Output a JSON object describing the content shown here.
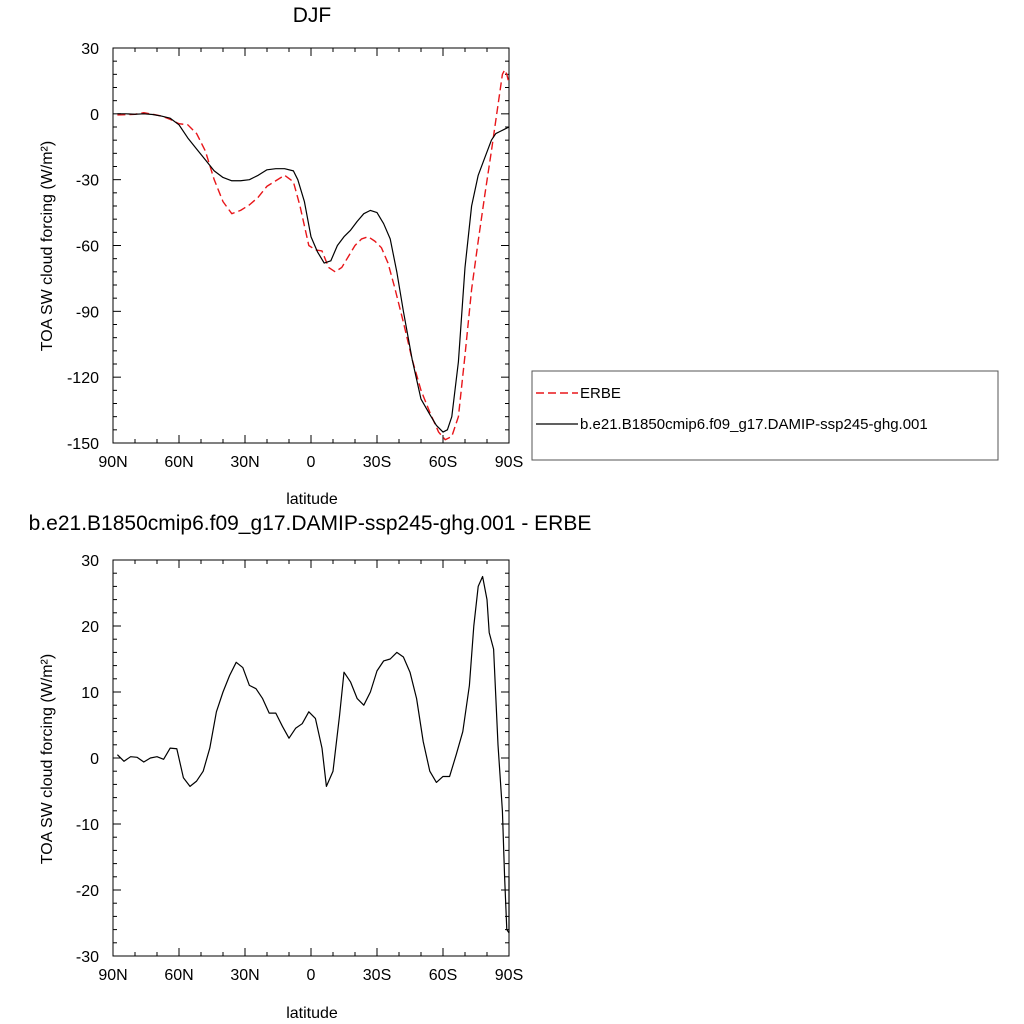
{
  "chart_data": [
    {
      "type": "line",
      "title": "DJF",
      "xlabel": "latitude",
      "ylabel": "TOA SW cloud forcing (W/m²)",
      "xlim": [
        90,
        -90
      ],
      "ylim": [
        -150,
        30
      ],
      "xticks": [
        90,
        60,
        30,
        0,
        -30,
        -60,
        -90
      ],
      "xtick_labels": [
        "90N",
        "60N",
        "30N",
        "0",
        "30S",
        "60S",
        "90S"
      ],
      "yticks": [
        30,
        0,
        -30,
        -60,
        -90,
        -120,
        -150
      ],
      "ytick_labels": [
        "30",
        "0",
        "-30",
        "-60",
        "-90",
        "-120",
        "-150"
      ],
      "legend_position": "right",
      "series": [
        {
          "name": "ERBE",
          "style": "dashed",
          "color": "#e8161a",
          "points": [
            [
              88,
              -0.5
            ],
            [
              84,
              -0.4
            ],
            [
              80,
              -0.2
            ],
            [
              76,
              0.5
            ],
            [
              72,
              -0.2
            ],
            [
              68,
              -1
            ],
            [
              64,
              -2.5
            ],
            [
              60,
              -4.5
            ],
            [
              56,
              -5
            ],
            [
              52,
              -9
            ],
            [
              48,
              -17
            ],
            [
              44,
              -30
            ],
            [
              40,
              -40
            ],
            [
              36,
              -45.5
            ],
            [
              32,
              -44
            ],
            [
              28,
              -41.5
            ],
            [
              24,
              -38
            ],
            [
              20,
              -33
            ],
            [
              16,
              -30.5
            ],
            [
              12,
              -28
            ],
            [
              8,
              -31
            ],
            [
              5,
              -42
            ],
            [
              1,
              -60
            ],
            [
              -2,
              -62
            ],
            [
              -5,
              -62.5
            ],
            [
              -8,
              -70
            ],
            [
              -11,
              -72
            ],
            [
              -14,
              -70
            ],
            [
              -17,
              -65
            ],
            [
              -20,
              -60
            ],
            [
              -23,
              -57
            ],
            [
              -26,
              -56
            ],
            [
              -29,
              -58
            ],
            [
              -32,
              -61
            ],
            [
              -35,
              -68
            ],
            [
              -38,
              -79
            ],
            [
              -42,
              -95
            ],
            [
              -46,
              -112
            ],
            [
              -50,
              -126
            ],
            [
              -54,
              -136
            ],
            [
              -58,
              -145
            ],
            [
              -61,
              -148.5
            ],
            [
              -64,
              -147
            ],
            [
              -67,
              -138
            ],
            [
              -70,
              -110
            ],
            [
              -73,
              -80
            ],
            [
              -76,
              -58
            ],
            [
              -79,
              -37
            ],
            [
              -82,
              -17
            ],
            [
              -85,
              4
            ],
            [
              -87,
              18
            ],
            [
              -88,
              20
            ],
            [
              -89,
              18
            ],
            [
              -90,
              14
            ]
          ]
        },
        {
          "name": "b.e21.B1850cmip6.f09_g17.DAMIP-ssp245-ghg.001",
          "style": "solid",
          "color": "#000000",
          "points": [
            [
              88,
              0
            ],
            [
              84,
              0
            ],
            [
              80,
              -0.2
            ],
            [
              76,
              0
            ],
            [
              72,
              -0.3
            ],
            [
              68,
              -1
            ],
            [
              64,
              -2
            ],
            [
              60,
              -5
            ],
            [
              56,
              -11
            ],
            [
              52,
              -16
            ],
            [
              48,
              -21
            ],
            [
              44,
              -26
            ],
            [
              40,
              -29
            ],
            [
              36,
              -30.5
            ],
            [
              32,
              -30.5
            ],
            [
              28,
              -30
            ],
            [
              24,
              -28
            ],
            [
              20,
              -25.5
            ],
            [
              16,
              -25
            ],
            [
              12,
              -25
            ],
            [
              8,
              -26
            ],
            [
              6,
              -30
            ],
            [
              3,
              -40
            ],
            [
              0,
              -56
            ],
            [
              -3,
              -63
            ],
            [
              -6,
              -68
            ],
            [
              -9,
              -67
            ],
            [
              -12,
              -60
            ],
            [
              -15,
              -56
            ],
            [
              -18,
              -53
            ],
            [
              -21,
              -49
            ],
            [
              -24,
              -45.5
            ],
            [
              -27,
              -44
            ],
            [
              -30,
              -45
            ],
            [
              -33,
              -50
            ],
            [
              -36,
              -57
            ],
            [
              -39,
              -72
            ],
            [
              -42,
              -90
            ],
            [
              -46,
              -112
            ],
            [
              -50,
              -130
            ],
            [
              -54,
              -137
            ],
            [
              -57,
              -142
            ],
            [
              -60,
              -145
            ],
            [
              -62,
              -144
            ],
            [
              -64,
              -138
            ],
            [
              -67,
              -113
            ],
            [
              -70,
              -70
            ],
            [
              -73,
              -42
            ],
            [
              -76,
              -28
            ],
            [
              -79,
              -20
            ],
            [
              -82,
              -12
            ],
            [
              -84,
              -9
            ],
            [
              -86,
              -8
            ],
            [
              -88,
              -7
            ],
            [
              -90,
              -6
            ]
          ]
        }
      ]
    },
    {
      "type": "line",
      "title": "b.e21.B1850cmip6.f09_g17.DAMIP-ssp245-ghg.001 - ERBE",
      "xlabel": "latitude",
      "ylabel": "TOA SW cloud forcing (W/m²)",
      "xlim": [
        90,
        -90
      ],
      "ylim": [
        -30,
        30
      ],
      "xticks": [
        90,
        60,
        30,
        0,
        -30,
        -60,
        -90
      ],
      "xtick_labels": [
        "90N",
        "60N",
        "30N",
        "0",
        "30S",
        "60S",
        "90S"
      ],
      "yticks": [
        30,
        20,
        10,
        0,
        -10,
        -20,
        -30
      ],
      "ytick_labels": [
        "30",
        "20",
        "10",
        "0",
        "-10",
        "-20",
        "-30"
      ],
      "series": [
        {
          "style": "solid",
          "color": "#000000",
          "points": [
            [
              88,
              0.5
            ],
            [
              85,
              -0.5
            ],
            [
              82,
              0.2
            ],
            [
              79,
              0.1
            ],
            [
              76,
              -0.6
            ],
            [
              73,
              0
            ],
            [
              70,
              0.2
            ],
            [
              67,
              -0.2
            ],
            [
              64,
              1.5
            ],
            [
              61,
              1.4
            ],
            [
              58,
              -3
            ],
            [
              55,
              -4.3
            ],
            [
              52,
              -3.5
            ],
            [
              49,
              -2
            ],
            [
              46,
              1.5
            ],
            [
              43,
              7
            ],
            [
              40,
              10
            ],
            [
              37,
              12.5
            ],
            [
              34,
              14.5
            ],
            [
              31,
              13.7
            ],
            [
              28,
              11
            ],
            [
              25,
              10.5
            ],
            [
              22,
              9
            ],
            [
              19,
              6.8
            ],
            [
              16,
              6.8
            ],
            [
              13,
              4.8
            ],
            [
              10,
              3
            ],
            [
              7,
              4.5
            ],
            [
              4,
              5.2
            ],
            [
              1,
              7
            ],
            [
              -2,
              6
            ],
            [
              -5,
              1.5
            ],
            [
              -7,
              -4.3
            ],
            [
              -10,
              -2
            ],
            [
              -13,
              6.5
            ],
            [
              -15,
              13
            ],
            [
              -18,
              11.5
            ],
            [
              -21,
              9
            ],
            [
              -24,
              8
            ],
            [
              -27,
              10
            ],
            [
              -30,
              13.2
            ],
            [
              -33,
              14.7
            ],
            [
              -36,
              15
            ],
            [
              -39,
              16
            ],
            [
              -42,
              15.3
            ],
            [
              -45,
              13
            ],
            [
              -48,
              9
            ],
            [
              -51,
              2.5
            ],
            [
              -54,
              -2
            ],
            [
              -57,
              -3.7
            ],
            [
              -60,
              -2.8
            ],
            [
              -63,
              -2.8
            ],
            [
              -66,
              0.5
            ],
            [
              -69,
              4
            ],
            [
              -72,
              11
            ],
            [
              -74,
              20
            ],
            [
              -76,
              26
            ],
            [
              -78,
              27.5
            ],
            [
              -80,
              24
            ],
            [
              -81,
              19
            ],
            [
              -83,
              16.5
            ],
            [
              -85,
              2
            ],
            [
              -87,
              -8
            ],
            [
              -88,
              -18
            ],
            [
              -89,
              -26
            ],
            [
              -90,
              -26.5
            ],
            [
              -90,
              -18
            ]
          ]
        }
      ]
    }
  ]
}
